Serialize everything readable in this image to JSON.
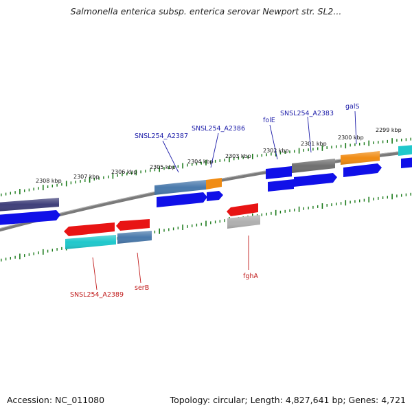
{
  "title": "Salmonella enterica subsp. enterica serovar Newport str. SL2...",
  "footer": {
    "accession": "Accession: NC_011080",
    "topology": "Topology: circular; Length: 4,827,641 bp; Genes: 4,721"
  },
  "ticks": [
    "2299 kbp",
    "2300 kbp",
    "2301 kbp",
    "2302 kbp",
    "2303 kbp",
    "2304 kbp",
    "2305 kbp",
    "2306 kbp",
    "2307 kbp",
    "2308 kbp"
  ],
  "gene_labels_top": [
    "galS",
    "SNSL254_A2383",
    "folE",
    "SNSL254_A2386",
    "SNSL254_A2387"
  ],
  "gene_labels_bottom": [
    "fghA",
    "serB",
    "SNSL254_A2389"
  ],
  "colors": {
    "blue": "#1010e8",
    "dark_purple": "#40407a",
    "steel": "#4a7aac",
    "orange": "#f08c14",
    "gray": "#707070",
    "cyan": "#20c8cc",
    "red": "#e81414",
    "light_gray": "#b0b0b0",
    "backbone": "#808080",
    "tick_green": "#1a7a1a"
  }
}
